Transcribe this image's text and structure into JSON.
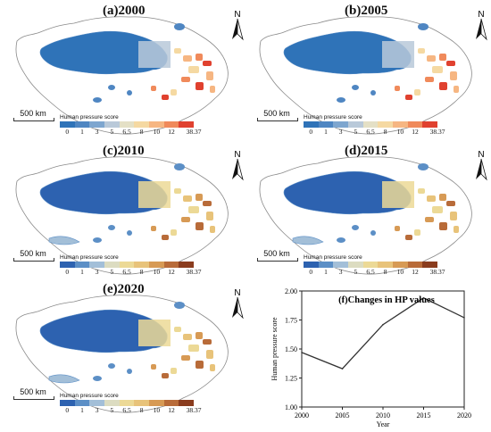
{
  "panels": [
    {
      "title": "(a)2000",
      "scale": "500 km",
      "legend_title": "Human pressure score",
      "ticks": [
        "0",
        "1",
        "3",
        "5",
        "6.5",
        "8",
        "10",
        "12",
        "38.37"
      ],
      "colors": [
        "#2f73b8",
        "#4f86c2",
        "#7ea6cf",
        "#b9c9d9",
        "#e4e0c6",
        "#f5d9a2",
        "#f6b682",
        "#f08a5b",
        "#e0412f"
      ]
    },
    {
      "title": "(b)2005",
      "scale": "500 km",
      "legend_title": "Human pressure score",
      "ticks": [
        "0",
        "1",
        "3",
        "5",
        "6.5",
        "8",
        "10",
        "12",
        "38.37"
      ],
      "colors": [
        "#2f73b8",
        "#4f86c2",
        "#7ea6cf",
        "#b9c9d9",
        "#e4e0c6",
        "#f5d9a2",
        "#f6b682",
        "#f08a5b",
        "#e0412f"
      ]
    },
    {
      "title": "(c)2010",
      "scale": "500 km",
      "legend_title": "Human pressure score",
      "ticks": [
        "0",
        "1",
        "3",
        "5",
        "6.5",
        "8",
        "10",
        "12",
        "38.37"
      ],
      "colors": [
        "#2d62b0",
        "#5c8fc6",
        "#a3bfd8",
        "#dcdcc1",
        "#ecd996",
        "#e8c37a",
        "#d79a55",
        "#b86b39",
        "#8a3c1e"
      ]
    },
    {
      "title": "(d)2015",
      "scale": "500 km",
      "legend_title": "Human pressure score",
      "ticks": [
        "0",
        "1",
        "3",
        "5",
        "6.5",
        "8",
        "10",
        "12",
        "38.37"
      ],
      "colors": [
        "#2d62b0",
        "#5c8fc6",
        "#a3bfd8",
        "#dcdcc1",
        "#ecd996",
        "#e8c37a",
        "#d79a55",
        "#b86b39",
        "#8a3c1e"
      ]
    },
    {
      "title": "(e)2020",
      "scale": "500 km",
      "legend_title": "Human pressure score",
      "ticks": [
        "0",
        "1",
        "3",
        "5",
        "6.5",
        "8",
        "10",
        "12",
        "38.37"
      ],
      "colors": [
        "#2d62b0",
        "#5c8fc6",
        "#a3bfd8",
        "#dcdcc1",
        "#ecd996",
        "#e8c37a",
        "#d79a55",
        "#b86b39",
        "#8a3c1e"
      ]
    }
  ],
  "north_label": "N",
  "chart_data": {
    "type": "line",
    "title": "(f)Changes in HP values",
    "xlabel": "Year",
    "ylabel": "Human pressure score",
    "x": [
      2000,
      2005,
      2010,
      2015,
      2020
    ],
    "values": [
      1.47,
      1.33,
      1.71,
      1.94,
      1.77
    ],
    "xticks": [
      "2000",
      "2005",
      "2010",
      "2015",
      "2020"
    ],
    "yticks": [
      "1.00",
      "1.25",
      "1.50",
      "1.75",
      "2.00"
    ],
    "ylim": [
      1.0,
      2.0
    ],
    "grid": false
  }
}
